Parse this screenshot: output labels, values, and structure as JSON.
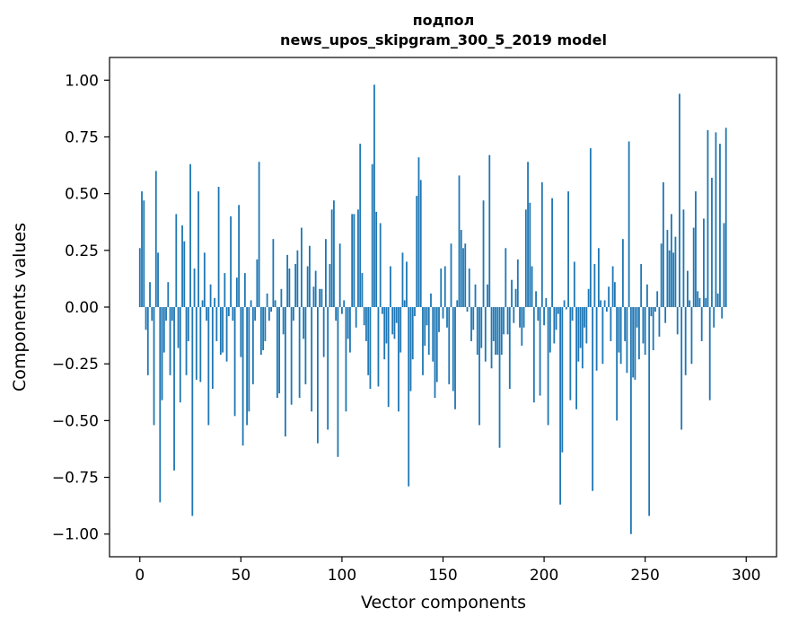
{
  "chart_data": {
    "type": "bar",
    "title": "подпол",
    "subtitle": "news_upos_skipgram_300_5_2019 model",
    "xlabel": "Vector components",
    "ylabel": "Components values",
    "xlim": [
      -15,
      315
    ],
    "ylim": [
      -1.1,
      1.1
    ],
    "xticks": [
      0,
      50,
      100,
      150,
      200,
      250,
      300
    ],
    "xtick_labels": [
      "0",
      "50",
      "100",
      "150",
      "200",
      "250",
      "300"
    ],
    "yticks": [
      -1.0,
      -0.75,
      -0.5,
      -0.25,
      0.0,
      0.25,
      0.5,
      0.75,
      1.0
    ],
    "ytick_labels": [
      "−1.00",
      "−0.75",
      "−0.50",
      "−0.25",
      "0.00",
      "0.25",
      "0.50",
      "0.75",
      "1.00"
    ],
    "grid": false,
    "bar_color": "#1f77b4",
    "series": [
      {
        "values": [
          0.26,
          0.51,
          0.47,
          -0.1,
          -0.3,
          0.11,
          -0.06,
          -0.52,
          0.6,
          0.24,
          -0.86,
          -0.41,
          -0.2,
          -0.06,
          0.11,
          -0.3,
          -0.06,
          -0.72,
          0.41,
          -0.18,
          -0.42,
          0.36,
          0.29,
          -0.3,
          -0.15,
          0.63,
          -0.92,
          0.17,
          -0.32,
          0.51,
          -0.33,
          0.03,
          0.24,
          -0.06,
          -0.52,
          0.1,
          -0.36,
          0.04,
          -0.15,
          0.53,
          -0.21,
          -0.2,
          0.15,
          -0.24,
          -0.04,
          0.4,
          -0.06,
          -0.48,
          0.13,
          0.45,
          -0.22,
          -0.61,
          0.15,
          -0.52,
          -0.46,
          0.03,
          -0.34,
          -0.06,
          0.21,
          0.64,
          -0.21,
          -0.19,
          -0.15,
          0.06,
          -0.06,
          -0.02,
          0.3,
          0.03,
          -0.4,
          -0.38,
          0.08,
          -0.12,
          -0.57,
          0.23,
          0.17,
          -0.43,
          -0.06,
          0.19,
          0.25,
          -0.4,
          0.35,
          -0.14,
          -0.34,
          0.18,
          0.27,
          -0.46,
          0.09,
          0.16,
          -0.6,
          0.08,
          0.08,
          -0.22,
          0.3,
          -0.54,
          0.19,
          0.43,
          0.47,
          -0.06,
          -0.66,
          0.28,
          -0.03,
          0.03,
          -0.46,
          -0.14,
          -0.2,
          0.41,
          0.41,
          -0.09,
          0.43,
          0.72,
          0.15,
          -0.08,
          -0.15,
          -0.3,
          -0.36,
          0.63,
          0.98,
          0.42,
          -0.35,
          0.37,
          -0.03,
          -0.23,
          -0.16,
          -0.44,
          0.18,
          -0.12,
          -0.14,
          -0.07,
          -0.46,
          -0.2,
          0.24,
          0.03,
          0.2,
          -0.79,
          -0.37,
          -0.23,
          -0.04,
          0.49,
          0.66,
          0.56,
          -0.3,
          -0.17,
          -0.08,
          -0.21,
          0.06,
          -0.24,
          -0.4,
          -0.33,
          -0.11,
          0.17,
          -0.05,
          0.18,
          -0.09,
          -0.34,
          0.28,
          -0.37,
          -0.45,
          0.03,
          0.58,
          0.34,
          0.26,
          0.28,
          -0.02,
          0.17,
          -0.15,
          -0.1,
          0.1,
          -0.21,
          -0.52,
          -0.18,
          0.47,
          -0.24,
          0.1,
          0.67,
          -0.27,
          -0.15,
          -0.21,
          -0.21,
          -0.62,
          -0.21,
          -0.12,
          0.26,
          -0.12,
          -0.36,
          0.12,
          -0.07,
          0.08,
          0.21,
          -0.09,
          -0.17,
          -0.09,
          0.43,
          0.64,
          0.46,
          0.18,
          -0.42,
          0.07,
          -0.06,
          -0.39,
          0.55,
          -0.08,
          0.04,
          -0.52,
          -0.2,
          0.48,
          -0.16,
          -0.1,
          -0.03,
          -0.87,
          -0.64,
          0.03,
          -0.01,
          0.51,
          -0.41,
          -0.06,
          0.2,
          -0.45,
          -0.24,
          -0.18,
          -0.27,
          -0.09,
          -0.16,
          0.08,
          0.7,
          -0.81,
          0.19,
          -0.28,
          0.26,
          0.03,
          -0.25,
          0.03,
          -0.02,
          0.09,
          -0.15,
          0.18,
          0.11,
          -0.5,
          -0.2,
          -0.25,
          0.3,
          -0.15,
          -0.29,
          0.73,
          -1.0,
          -0.31,
          -0.32,
          -0.09,
          -0.23,
          0.19,
          -0.16,
          -0.21,
          0.1,
          -0.92,
          -0.04,
          -0.19,
          -0.02,
          0.07,
          -0.13,
          0.28,
          0.55,
          -0.07,
          0.34,
          0.25,
          0.41,
          0.24,
          0.31,
          -0.12,
          0.94,
          -0.54,
          0.43,
          -0.3,
          0.16,
          0.03,
          -0.25,
          0.35,
          0.51,
          0.07,
          0.04,
          -0.15,
          0.39,
          0.04,
          0.78,
          -0.41,
          0.57,
          -0.09,
          0.77,
          0.06,
          0.72,
          -0.05,
          0.37,
          0.79
        ]
      }
    ]
  }
}
